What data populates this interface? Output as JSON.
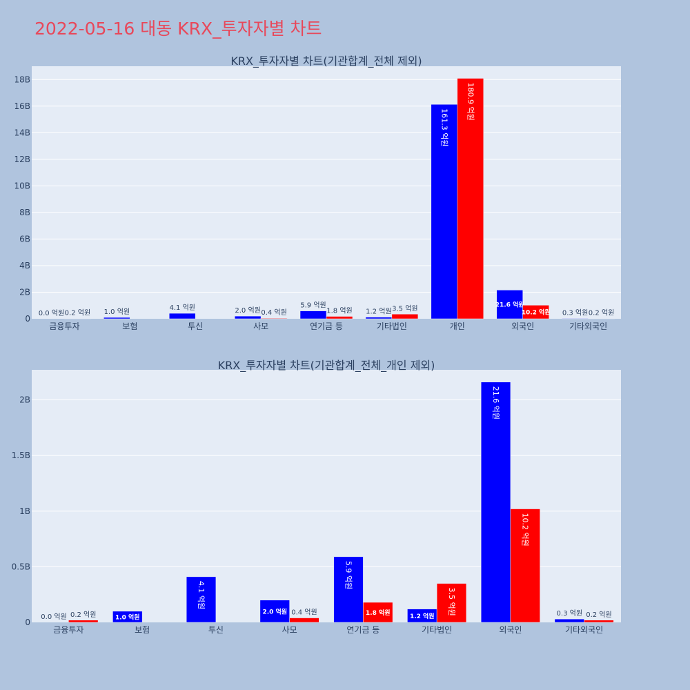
{
  "page_title": "2022-05-16 대동 KRX_투자자별 차트",
  "colors": {
    "background": "#b0c4de",
    "plot_bg": "#e5ecf6",
    "title": "#e8485a",
    "buy": "#0000ff",
    "sell": "#ff0000"
  },
  "chart_data": [
    {
      "type": "bar",
      "title": "KRX_투자자별 차트(기관합계_전체 제외)",
      "categories": [
        "금융투자",
        "보험",
        "투신",
        "사모",
        "연기금 등",
        "기타법인",
        "개인",
        "외국인",
        "기타외국인"
      ],
      "series": [
        {
          "color": "#0000ff",
          "values": [
            0.0,
            1.0,
            4.1,
            2.0,
            5.9,
            1.2,
            161.3,
            21.6,
            0.3
          ],
          "labels": [
            "0.0 억원",
            "1.0 억원",
            "4.1 억원",
            "2.0 억원",
            "5.9 억원",
            "1.2 억원",
            "161.3 억원",
            "21.6 억원",
            "0.3 억원"
          ]
        },
        {
          "color": "#ff0000",
          "values": [
            0.2,
            0.0,
            0.0,
            0.4,
            1.8,
            3.5,
            180.9,
            10.2,
            0.2
          ],
          "labels": [
            "0.2 억원",
            "",
            "",
            "0.4 억원",
            "1.8 억원",
            "3.5 억원",
            "180.9 억원",
            "10.2 억원",
            "0.2 억원"
          ]
        }
      ],
      "yticks": [
        0,
        20,
        40,
        60,
        80,
        100,
        120,
        140,
        160,
        180
      ],
      "ytick_labels": [
        "0",
        "2B",
        "4B",
        "6B",
        "8B",
        "10B",
        "12B",
        "14B",
        "16B",
        "18B"
      ],
      "ylim": [
        0,
        190
      ],
      "unit": "억원",
      "grid": true,
      "legend": false
    },
    {
      "type": "bar",
      "title": "KRX_투자자별 차트(기관합계_전체_개인 제외)",
      "categories": [
        "금융투자",
        "보험",
        "투신",
        "사모",
        "연기금 등",
        "기타법인",
        "외국인",
        "기타외국인"
      ],
      "series": [
        {
          "color": "#0000ff",
          "values": [
            0.0,
            1.0,
            4.1,
            2.0,
            5.9,
            1.2,
            21.6,
            0.3
          ],
          "labels": [
            "0.0 억원",
            "1.0 억원",
            "4.1 억원",
            "2.0 억원",
            "5.9 억원",
            "1.2 억원",
            "21.6 억원",
            "0.3 억원"
          ]
        },
        {
          "color": "#ff0000",
          "values": [
            0.2,
            0.0,
            0.0,
            0.4,
            1.8,
            3.5,
            10.2,
            0.2
          ],
          "labels": [
            "0.2 억원",
            "",
            "",
            "0.4 억원",
            "1.8 억원",
            "3.5 억원",
            "10.2 억원",
            "0.2 억원"
          ]
        }
      ],
      "yticks": [
        0,
        5,
        10,
        15,
        20
      ],
      "ytick_labels": [
        "0",
        "0.5B",
        "1B",
        "1.5B",
        "2B"
      ],
      "ylim": [
        0,
        22.7
      ],
      "unit": "억원",
      "grid": true,
      "legend": false
    }
  ]
}
